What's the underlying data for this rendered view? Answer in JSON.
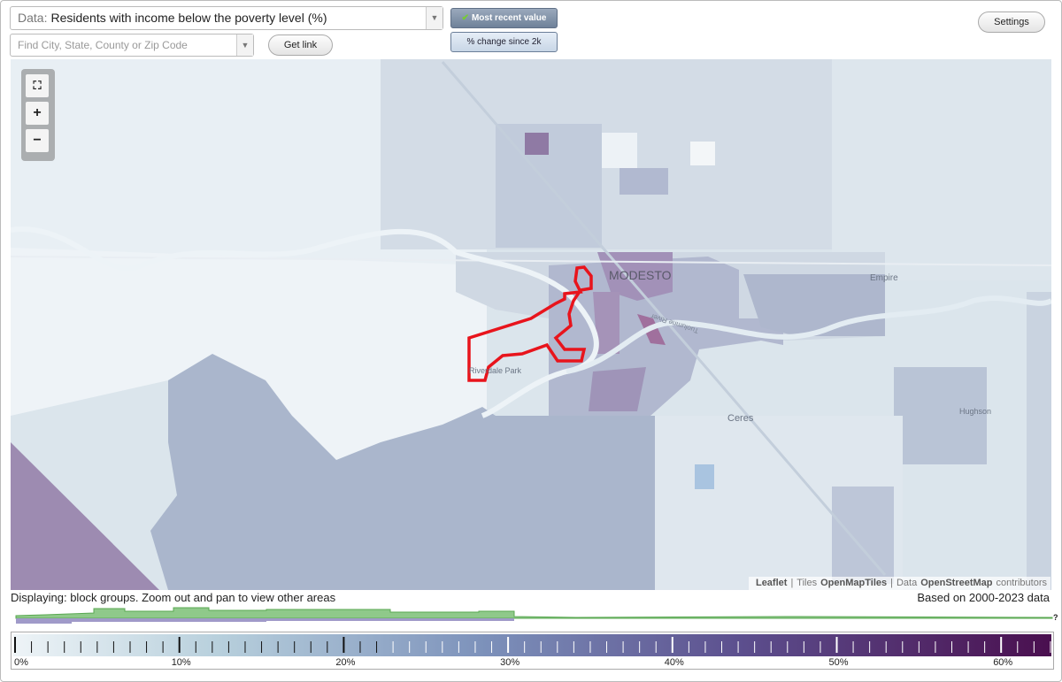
{
  "controls": {
    "data_label": "Data:",
    "data_value": "Residents with income below the poverty level (%)",
    "search_placeholder": "Find City, State, County or Zip Code",
    "get_link": "Get link",
    "mode_buttons": [
      "Most recent value",
      "% change since 2k"
    ],
    "settings": "Settings"
  },
  "map": {
    "labels": [
      "MODESTO",
      "Empire",
      "Ceres",
      "Hughson",
      "Riverdale Park",
      "Tuolumne River"
    ],
    "zoom": [
      "+",
      "−"
    ],
    "attribution": [
      "Leaflet",
      "|",
      "Tiles",
      "OpenMapTiles",
      "|",
      "Data",
      "OpenStreetMap",
      "contributors"
    ]
  },
  "status": {
    "display_note": "Displaying: block groups. Zoom out and pan to view other areas",
    "data_range": "Based on 2000-2023 data",
    "help": "?"
  },
  "legend": {
    "labels": [
      "0%",
      "10%",
      "20%",
      "30%",
      "40%",
      "50%",
      "60%"
    ]
  }
}
